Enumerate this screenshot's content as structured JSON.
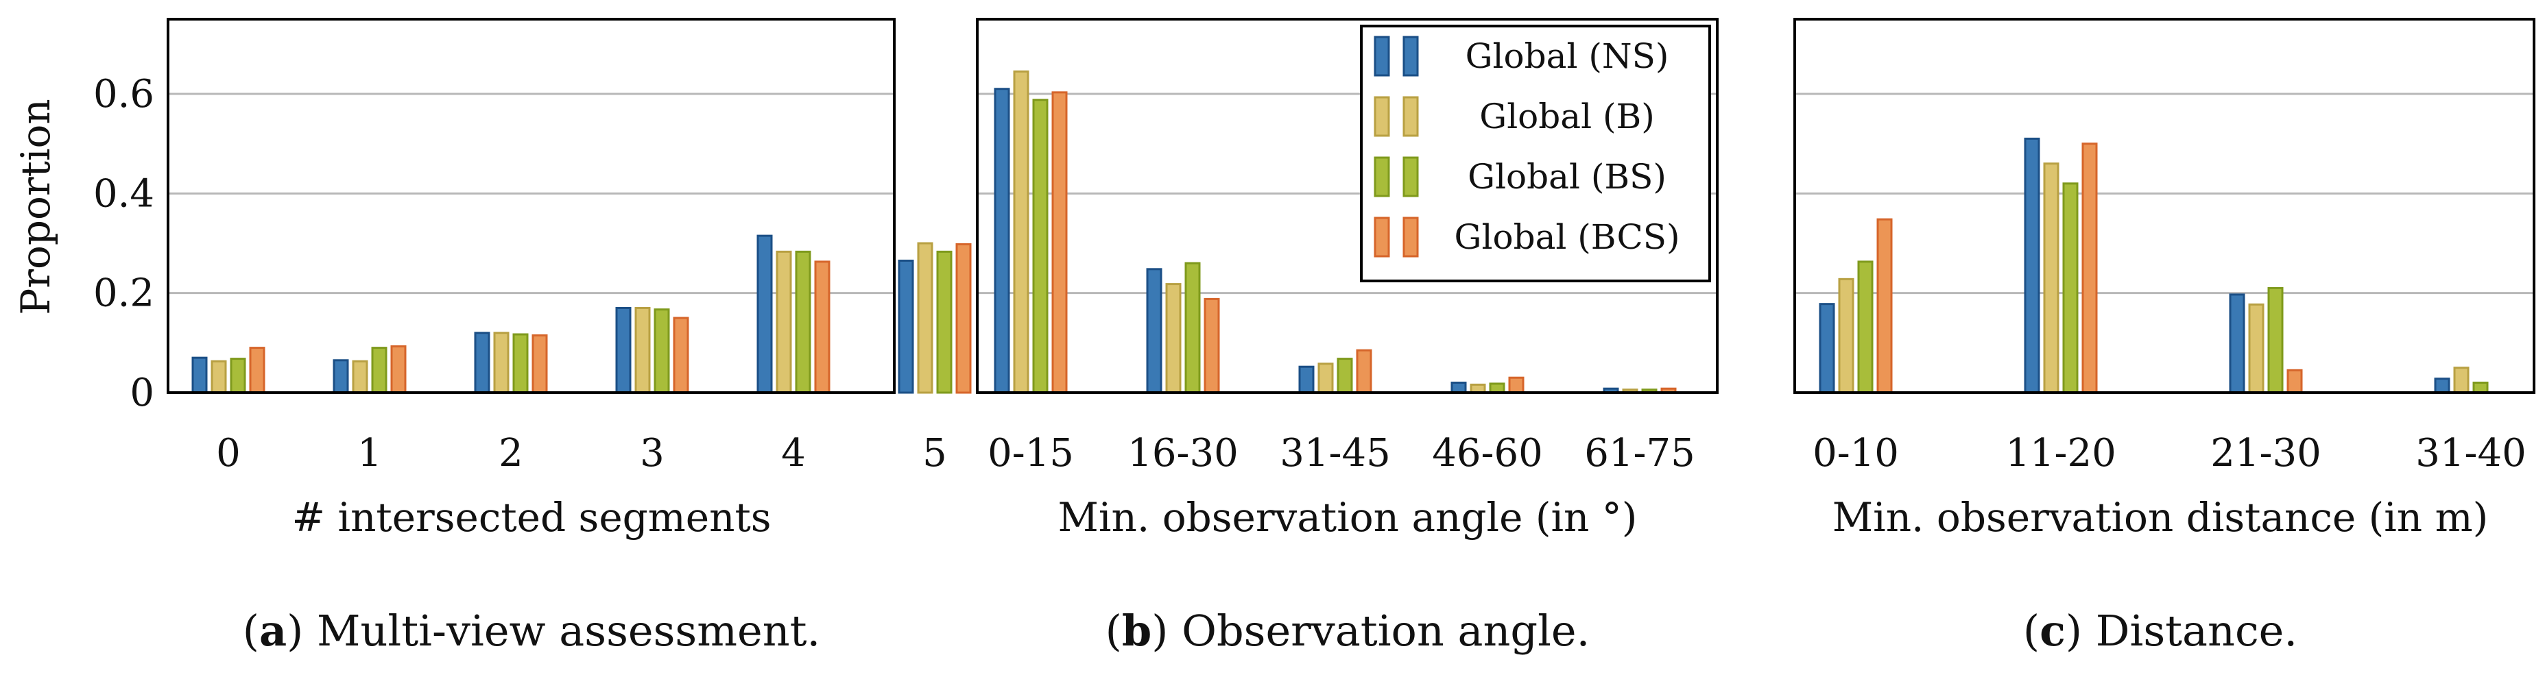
{
  "colors": {
    "series": [
      "#3a79b4",
      "#dcc46e",
      "#a8bd3a",
      "#ec9555"
    ],
    "edges": [
      "#1b4f86",
      "#b8a042",
      "#7f9a1c",
      "#d6652a"
    ]
  },
  "legend": [
    "Global (NS)",
    "Global (B)",
    "Global (BS)",
    "Global (BCS)"
  ],
  "chart_data": [
    {
      "type": "bar",
      "panel": "a",
      "caption_letter": "a",
      "caption_text": ") Multi-view assessment.",
      "xlabel": "# intersected segments",
      "ylabel": "Proportion",
      "ylim": [
        0,
        0.75
      ],
      "yticks": [
        0,
        0.2,
        0.4,
        0.6
      ],
      "ytick_labels": [
        "0",
        "0.2",
        "0.4",
        "0.6"
      ],
      "grid": true,
      "categories": [
        "0",
        "1",
        "2",
        "3",
        "4",
        "5"
      ],
      "series": [
        {
          "name": "Global (NS)",
          "values": [
            0.07,
            0.065,
            0.12,
            0.17,
            0.315,
            0.265
          ]
        },
        {
          "name": "Global (B)",
          "values": [
            0.063,
            0.063,
            0.12,
            0.17,
            0.283,
            0.3
          ]
        },
        {
          "name": "Global (BS)",
          "values": [
            0.068,
            0.09,
            0.117,
            0.167,
            0.283,
            0.283
          ]
        },
        {
          "name": "Global (BCS)",
          "values": [
            0.09,
            0.093,
            0.115,
            0.15,
            0.263,
            0.298
          ]
        }
      ]
    },
    {
      "type": "bar",
      "panel": "b",
      "caption_letter": "b",
      "caption_text": ") Observation angle.",
      "xlabel": "Min. observation angle (in °)",
      "ylabel": "",
      "ylim": [
        0,
        0.75
      ],
      "yticks": [
        0,
        0.2,
        0.4,
        0.6
      ],
      "grid": true,
      "legend_position": "top-right",
      "categories": [
        "0-15",
        "16-30",
        "31-45",
        "46-60",
        "61-75"
      ],
      "series": [
        {
          "name": "Global (NS)",
          "values": [
            0.61,
            0.248,
            0.052,
            0.02,
            0.008
          ]
        },
        {
          "name": "Global (B)",
          "values": [
            0.645,
            0.218,
            0.058,
            0.016,
            0.006
          ]
        },
        {
          "name": "Global (BS)",
          "values": [
            0.588,
            0.26,
            0.068,
            0.018,
            0.006
          ]
        },
        {
          "name": "Global (BCS)",
          "values": [
            0.603,
            0.188,
            0.085,
            0.03,
            0.008
          ]
        }
      ]
    },
    {
      "type": "bar",
      "panel": "c",
      "caption_letter": "c",
      "caption_text": ") Distance.",
      "xlabel": "Min. observation distance (in m)",
      "ylabel": "",
      "ylim": [
        0,
        0.75
      ],
      "yticks": [
        0,
        0.2,
        0.4,
        0.6
      ],
      "grid": true,
      "categories": [
        "0-10",
        "11-20",
        "21-30",
        "31-40"
      ],
      "series": [
        {
          "name": "Global (NS)",
          "values": [
            0.178,
            0.51,
            0.197,
            0.028
          ]
        },
        {
          "name": "Global (B)",
          "values": [
            0.228,
            0.46,
            0.177,
            0.05
          ]
        },
        {
          "name": "Global (BS)",
          "values": [
            0.263,
            0.42,
            0.21,
            0.02
          ]
        },
        {
          "name": "Global (BCS)",
          "values": [
            0.348,
            0.5,
            0.045,
            0
          ]
        }
      ]
    }
  ]
}
